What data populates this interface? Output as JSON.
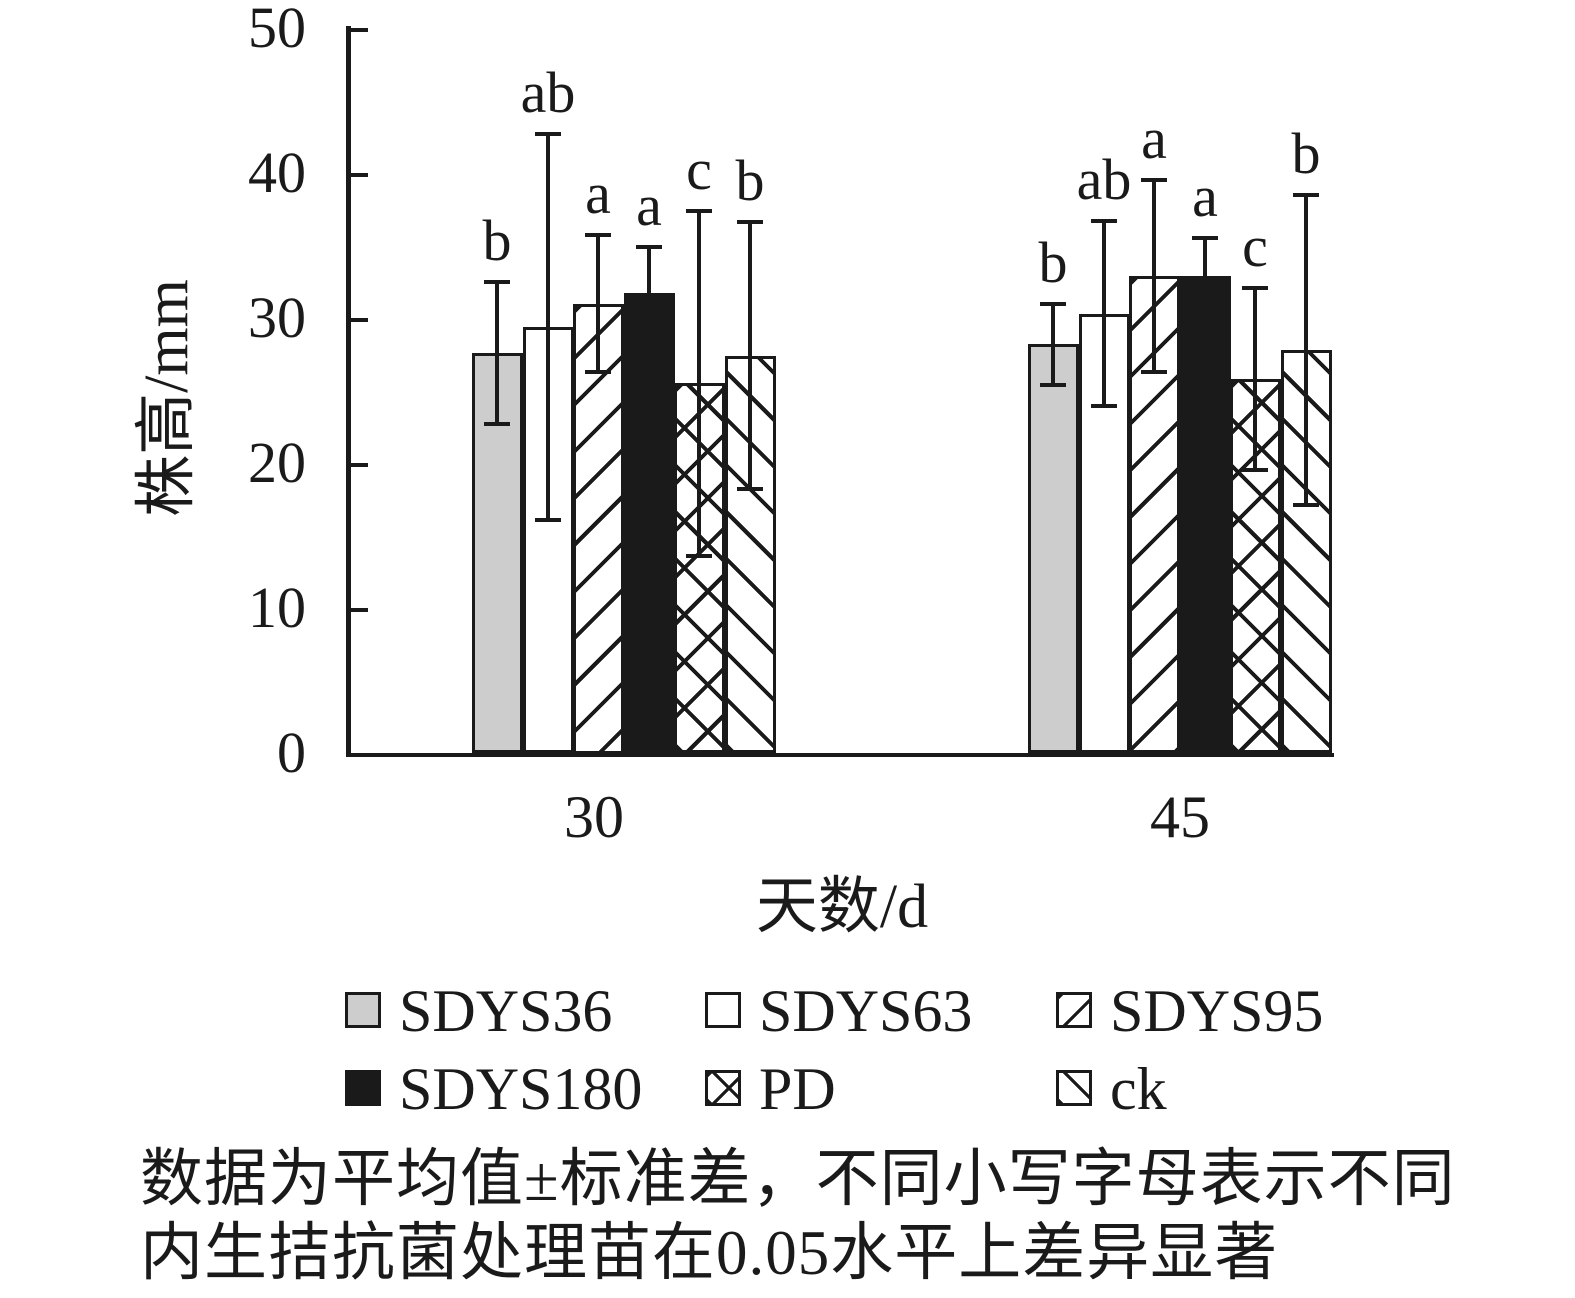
{
  "chart_data": {
    "type": "bar",
    "title": "",
    "xlabel": "天数/d",
    "ylabel": "株高/mm",
    "ylim": [
      0,
      50
    ],
    "ytick_labels": [
      "0",
      "10",
      "20",
      "30",
      "40",
      "50"
    ],
    "categories": [
      "30",
      "45"
    ],
    "grid": false,
    "error_bars": true,
    "legend_position": "bottom",
    "series": [
      {
        "name": "SDYS36",
        "pattern": "solid-gray",
        "values": [
          27.6,
          28.2
        ],
        "sd": [
          4.9,
          2.8
        ],
        "sig_letters": [
          "b",
          "b"
        ]
      },
      {
        "name": "SDYS63",
        "pattern": "solid-white",
        "values": [
          29.4,
          30.3
        ],
        "sd": [
          13.3,
          6.4
        ],
        "sig_letters": [
          "ab",
          "ab"
        ]
      },
      {
        "name": "SDYS95",
        "pattern": "diagonal-forward",
        "values": [
          31.0,
          32.9
        ],
        "sd": [
          4.7,
          6.6
        ],
        "sig_letters": [
          "a",
          "a"
        ]
      },
      {
        "name": "SDYS180",
        "pattern": "solid-black",
        "values": [
          31.7,
          32.9
        ],
        "sd": [
          3.2,
          2.6
        ],
        "sig_letters": [
          "a",
          "a"
        ]
      },
      {
        "name": "PD",
        "pattern": "crosshatch",
        "values": [
          25.5,
          25.8
        ],
        "sd": [
          11.9,
          6.3
        ],
        "sig_letters": [
          "c",
          "c"
        ]
      },
      {
        "name": "ck",
        "pattern": "diagonal-back",
        "values": [
          27.4,
          27.8
        ],
        "sd": [
          9.2,
          10.7
        ],
        "sig_letters": [
          "b",
          "b"
        ]
      }
    ]
  },
  "footnote": {
    "line1": "数据为平均值±标准差，不同小写字母表示不同",
    "line2": "内生拮抗菌处理苗在0.05水平上差异显著"
  },
  "colors": {
    "ink": "#1a1a1a",
    "gray_fill": "#cdcdcd",
    "background": "#ffffff"
  }
}
